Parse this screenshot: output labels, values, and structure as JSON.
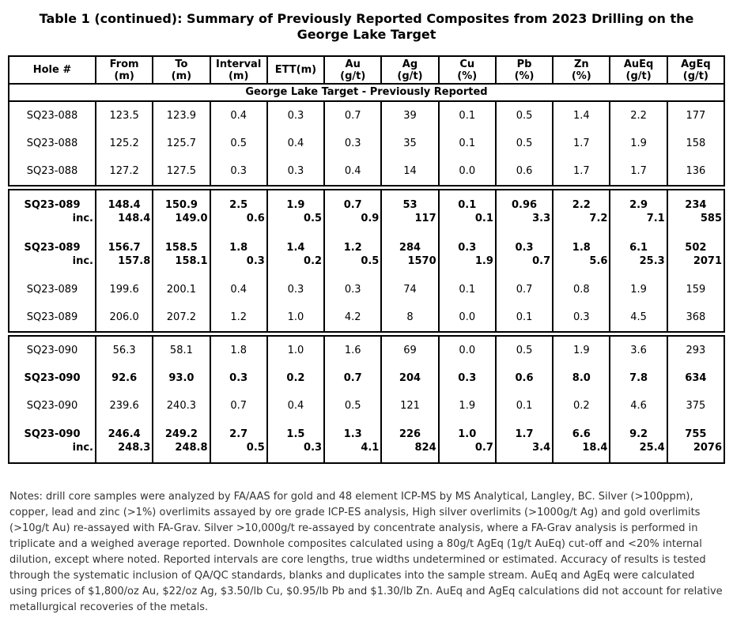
{
  "title": "Table 1 (continued): Summary of Previously Reported Composites from 2023 Drilling on the George Lake Target",
  "table": {
    "columns": [
      {
        "label": "Hole #",
        "sub": ""
      },
      {
        "label": "From",
        "sub": "(m)"
      },
      {
        "label": "To",
        "sub": "(m)"
      },
      {
        "label": "Interval",
        "sub": "(m)"
      },
      {
        "label": "ETT(m)",
        "sub": ""
      },
      {
        "label": "Au",
        "sub": "(g/t)"
      },
      {
        "label": "Ag",
        "sub": "(g/t)"
      },
      {
        "label": "Cu",
        "sub": "(%)"
      },
      {
        "label": "Pb",
        "sub": "(%)"
      },
      {
        "label": "Zn",
        "sub": "(%)"
      },
      {
        "label": "AuEq",
        "sub": "(g/t)"
      },
      {
        "label": "AgEq",
        "sub": "(g/t)"
      }
    ],
    "section_header": "George Lake Target - Previously Reported",
    "sections": [
      {
        "rows": [
          {
            "bold": false,
            "cells": [
              "SQ23-088",
              "123.5",
              "123.9",
              "0.4",
              "0.3",
              "0.7",
              "39",
              "0.1",
              "0.5",
              "1.4",
              "2.2",
              "177"
            ]
          },
          {
            "bold": false,
            "cells": [
              "SQ23-088",
              "125.2",
              "125.7",
              "0.5",
              "0.4",
              "0.3",
              "35",
              "0.1",
              "0.5",
              "1.7",
              "1.9",
              "158"
            ]
          },
          {
            "bold": false,
            "cells": [
              "SQ23-088",
              "127.2",
              "127.5",
              "0.3",
              "0.3",
              "0.4",
              "14",
              "0.0",
              "0.6",
              "1.7",
              "1.7",
              "136"
            ]
          }
        ]
      },
      {
        "rows": [
          {
            "bold": true,
            "cells": [
              "SQ23-089",
              "148.4",
              "150.9",
              "2.5",
              "1.9",
              "0.7",
              "53",
              "0.1",
              "0.96",
              "2.2",
              "2.9",
              "234"
            ],
            "inc": [
              "inc.",
              "148.4",
              "149.0",
              "0.6",
              "0.5",
              "0.9",
              "117",
              "0.1",
              "3.3",
              "7.2",
              "7.1",
              "585"
            ]
          },
          {
            "bold": true,
            "cells": [
              "SQ23-089",
              "156.7",
              "158.5",
              "1.8",
              "1.4",
              "1.2",
              "284",
              "0.3",
              "0.3",
              "1.8",
              "6.1",
              "502"
            ],
            "inc": [
              "inc.",
              "157.8",
              "158.1",
              "0.3",
              "0.2",
              "0.5",
              "1570",
              "1.9",
              "0.7",
              "5.6",
              "25.3",
              "2071"
            ]
          },
          {
            "bold": false,
            "cells": [
              "SQ23-089",
              "199.6",
              "200.1",
              "0.4",
              "0.3",
              "0.3",
              "74",
              "0.1",
              "0.7",
              "0.8",
              "1.9",
              "159"
            ]
          },
          {
            "bold": false,
            "cells": [
              "SQ23-089",
              "206.0",
              "207.2",
              "1.2",
              "1.0",
              "4.2",
              "8",
              "0.0",
              "0.1",
              "0.3",
              "4.5",
              "368"
            ]
          }
        ]
      },
      {
        "rows": [
          {
            "bold": false,
            "cells": [
              "SQ23-090",
              "56.3",
              "58.1",
              "1.8",
              "1.0",
              "1.6",
              "69",
              "0.0",
              "0.5",
              "1.9",
              "3.6",
              "293"
            ]
          },
          {
            "bold": true,
            "cells": [
              "SQ23-090",
              "92.6",
              "93.0",
              "0.3",
              "0.2",
              "0.7",
              "204",
              "0.3",
              "0.6",
              "8.0",
              "7.8",
              "634"
            ]
          },
          {
            "bold": false,
            "cells": [
              "SQ23-090",
              "239.6",
              "240.3",
              "0.7",
              "0.4",
              "0.5",
              "121",
              "1.9",
              "0.1",
              "0.2",
              "4.6",
              "375"
            ]
          },
          {
            "bold": true,
            "cells": [
              "SQ23-090",
              "246.4",
              "249.2",
              "2.7",
              "1.5",
              "1.3",
              "226",
              "1.0",
              "1.7",
              "6.6",
              "9.2",
              "755"
            ],
            "inc": [
              "inc.",
              "248.3",
              "248.8",
              "0.5",
              "0.3",
              "4.1",
              "824",
              "0.7",
              "3.4",
              "18.4",
              "25.4",
              "2076"
            ]
          }
        ]
      }
    ]
  },
  "notes": "Notes: drill core samples were analyzed by FA/AAS for gold and 48 element ICP-MS by MS Analytical, Langley, BC. Silver (>100ppm), copper, lead and zinc (>1%) overlimits assayed by ore grade ICP-ES analysis, High silver overlimits (>1000g/t Ag) and gold overlimits (>10g/t Au) re-assayed with FA-Grav. Silver >10,000g/t re-assayed by concentrate analysis, where a FA-Grav analysis is performed in triplicate and a weighed average reported. Downhole composites calculated using a 80g/t AgEq (1g/t AuEq) cut-off and <20% internal dilution, except where noted. Reported intervals are core lengths, true widths undetermined or estimated. Accuracy of results is tested through the systematic inclusion of QA/QC standards, blanks and duplicates into the sample stream. AuEq and AgEq were calculated using prices of $1,800/oz Au, $22/oz Ag, $3.50/lb Cu, $0.95/lb Pb and $1.30/lb Zn. AuEq and AgEq calculations did not account for relative metallurgical recoveries of the metals."
}
